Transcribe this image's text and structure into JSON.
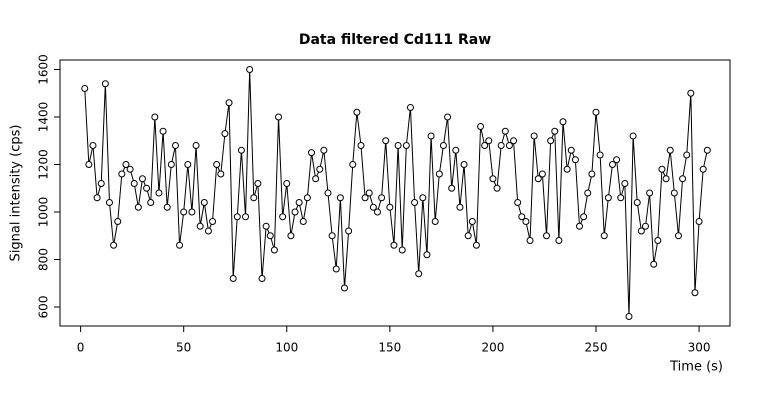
{
  "chart_data": {
    "type": "line",
    "title": "Data filtered Cd111 Raw",
    "x_label": "Time (s)",
    "y_label": "Signal intensity (cps)",
    "x": [
      2,
      4,
      6,
      8,
      10,
      12,
      14,
      16,
      18,
      20,
      22,
      24,
      26,
      28,
      30,
      32,
      34,
      36,
      38,
      40,
      42,
      44,
      46,
      48,
      50,
      52,
      54,
      56,
      58,
      60,
      62,
      64,
      66,
      68,
      70,
      72,
      74,
      76,
      78,
      80,
      82,
      84,
      86,
      88,
      90,
      92,
      94,
      96,
      98,
      100,
      102,
      104,
      106,
      108,
      110,
      112,
      114,
      116,
      118,
      120,
      122,
      124,
      126,
      128,
      130,
      132,
      134,
      136,
      138,
      140,
      142,
      144,
      146,
      148,
      150,
      152,
      154,
      156,
      158,
      160,
      162,
      164,
      166,
      168,
      170,
      172,
      174,
      176,
      178,
      180,
      182,
      184,
      186,
      188,
      190,
      192,
      194,
      196,
      198,
      200,
      202,
      204,
      206,
      208,
      210,
      212,
      214,
      216,
      218,
      220,
      222,
      224,
      226,
      228,
      230,
      232,
      234,
      236,
      238,
      240,
      242,
      244,
      246,
      248,
      250,
      252,
      254,
      256,
      258,
      260,
      262,
      264,
      266,
      268,
      270,
      272,
      274,
      276,
      278,
      280,
      282,
      284,
      286,
      288,
      290,
      292,
      294,
      296,
      298,
      300,
      302,
      304
    ],
    "series": [
      {
        "name": "Cd111",
        "color": "#000000",
        "values": [
          1520,
          1200,
          1280,
          1060,
          1120,
          1540,
          1040,
          860,
          960,
          1160,
          1200,
          1180,
          1120,
          1020,
          1140,
          1100,
          1040,
          1400,
          1080,
          1340,
          1020,
          1200,
          1280,
          860,
          1000,
          1200,
          1000,
          1280,
          940,
          1040,
          920,
          960,
          1200,
          1160,
          1330,
          1460,
          720,
          980,
          1260,
          980,
          1600,
          1060,
          1120,
          720,
          940,
          900,
          840,
          1400,
          980,
          1120,
          900,
          1000,
          1040,
          960,
          1060,
          1250,
          1140,
          1180,
          1260,
          1080,
          900,
          760,
          1060,
          680,
          920,
          1200,
          1420,
          1280,
          1060,
          1080,
          1020,
          1000,
          1060,
          1300,
          1020,
          860,
          1280,
          840,
          1280,
          1440,
          1040,
          740,
          1060,
          820,
          1320,
          960,
          1160,
          1280,
          1400,
          1100,
          1260,
          1020,
          1200,
          900,
          960,
          860,
          1360,
          1280,
          1300,
          1140,
          1100,
          1280,
          1340,
          1280,
          1300,
          1040,
          980,
          960,
          880,
          1320,
          1140,
          1160,
          900,
          1300,
          1340,
          880,
          1380,
          1180,
          1260,
          1220,
          940,
          980,
          1080,
          1160,
          1420,
          1240,
          900,
          1060,
          1200,
          1220,
          1060,
          1120,
          560,
          1320,
          1040,
          920,
          940,
          1080,
          780,
          880,
          1180,
          1140,
          1260,
          1080,
          900,
          1140,
          1240,
          1500,
          660,
          960,
          1180,
          1260
        ]
      }
    ],
    "xlim": [
      -10,
      315
    ],
    "ylim": [
      520,
      1640
    ],
    "xticks": [
      0,
      50,
      100,
      150,
      200,
      250,
      300
    ],
    "yticks": [
      600,
      800,
      1000,
      1200,
      1400,
      1600
    ]
  }
}
